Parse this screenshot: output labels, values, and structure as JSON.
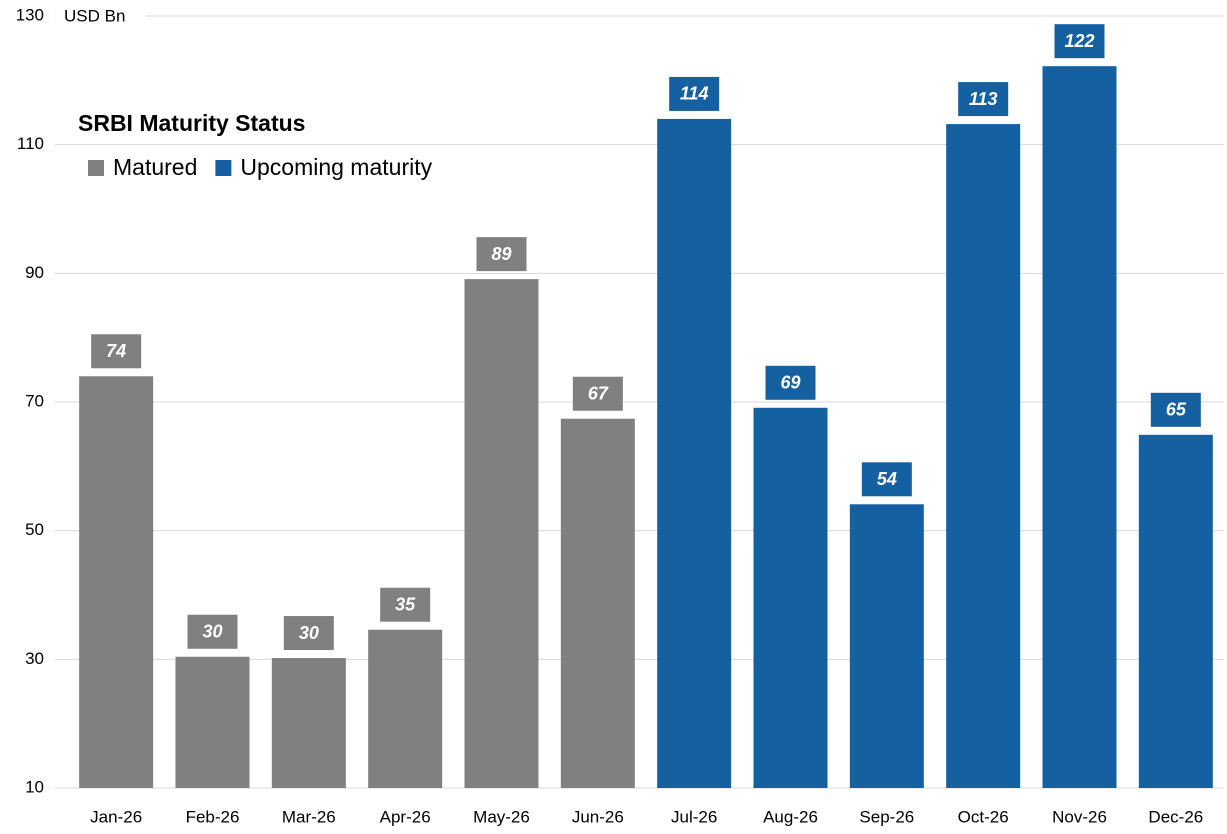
{
  "chart_data": {
    "type": "bar",
    "title": "SRBI Maturity Status",
    "y_axis_label": "USD Bn",
    "categories": [
      "Jan-26",
      "Feb-26",
      "Mar-26",
      "Apr-26",
      "May-26",
      "Jun-26",
      "Jul-26",
      "Aug-26",
      "Sep-26",
      "Oct-26",
      "Nov-26",
      "Dec-26"
    ],
    "series": [
      {
        "name": "Matured",
        "color": "#808080",
        "values": [
          74.0,
          30.4,
          30.2,
          34.6,
          89.1,
          67.4,
          null,
          null,
          null,
          null,
          null,
          null
        ],
        "value_labels": [
          "74",
          "30",
          "30",
          "35",
          "89",
          "67",
          null,
          null,
          null,
          null,
          null,
          null
        ]
      },
      {
        "name": "Upcoming maturity",
        "color": "#1560a0",
        "values": [
          null,
          null,
          null,
          null,
          null,
          null,
          114.0,
          69.1,
          54.1,
          113.2,
          122.2,
          64.9
        ],
        "value_labels": [
          null,
          null,
          null,
          null,
          null,
          null,
          "114",
          "69",
          "54",
          "113",
          "122",
          "65"
        ]
      }
    ],
    "ylim": [
      10,
      130
    ],
    "yticks": [
      10,
      30,
      50,
      70,
      90,
      110,
      130
    ],
    "grid": true,
    "legend": "upper left"
  }
}
